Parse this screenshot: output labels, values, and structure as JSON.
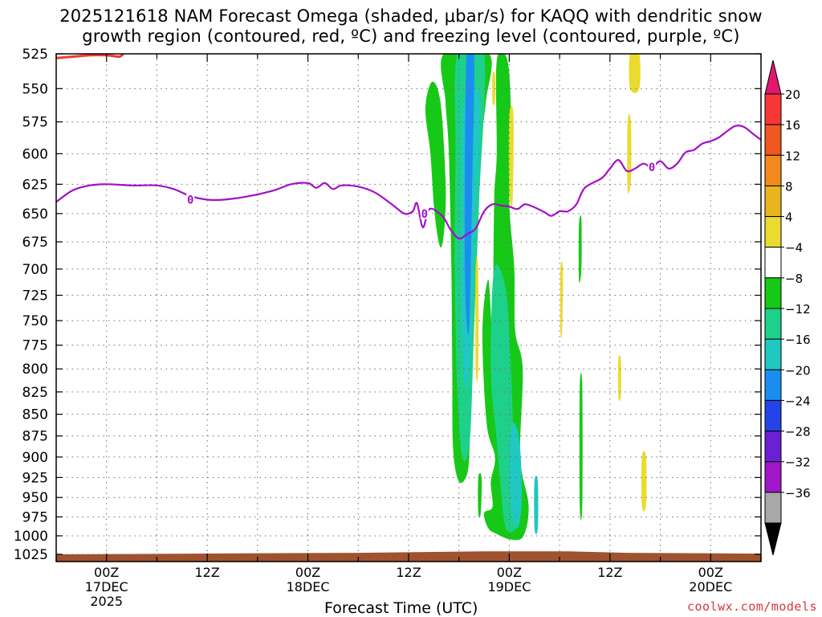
{
  "title": {
    "line1": "2025121618 NAM Forecast Omega (shaded, μbar/s) for KAQQ with dendritic snow",
    "line2": "growth region (contoured, red, ºC) and freezing level (contoured, purple, ºC)"
  },
  "watermark": "coolwx.com/models",
  "chart_data": {
    "type": "heatmap",
    "title": "2025121618 NAM Forecast Omega (shaded, μbar/s) for KAQQ with dendritic snow growth region (contoured, red, ºC) and freezing level (contoured, purple, ºC)",
    "xlabel": "Forecast Time (UTC)",
    "ylabel": "",
    "x_ticks": [
      {
        "hour": 0,
        "lines": [
          "00Z",
          "17DEC",
          "2025"
        ]
      },
      {
        "hour": 12,
        "lines": [
          "12Z"
        ]
      },
      {
        "hour": 24,
        "lines": [
          "00Z",
          "18DEC"
        ]
      },
      {
        "hour": 36,
        "lines": [
          "12Z"
        ]
      },
      {
        "hour": 48,
        "lines": [
          "00Z",
          "19DEC"
        ]
      },
      {
        "hour": 60,
        "lines": [
          "12Z"
        ]
      },
      {
        "hour": 72,
        "lines": [
          "00Z",
          "20DEC"
        ]
      }
    ],
    "xlim_hours": [
      -6,
      78
    ],
    "y_ticks": [
      525,
      550,
      575,
      600,
      625,
      650,
      675,
      700,
      725,
      750,
      775,
      800,
      825,
      850,
      875,
      900,
      925,
      950,
      975,
      1000,
      1025
    ],
    "ylim": [
      525,
      1035
    ],
    "y_scale": "log-pressure",
    "grid": true,
    "colorbar": {
      "labels": [
        "20",
        "16",
        "12",
        "8",
        "4",
        "−4",
        "−8",
        "−12",
        "−16",
        "−20",
        "−24",
        "−28",
        "−32",
        "−36"
      ],
      "colors": [
        "#f73737",
        "#f0561f",
        "#f28a1b",
        "#e9b51f",
        "#ebdb2e",
        "#ffffff",
        "#16c916",
        "#1ed18a",
        "#1fc8c1",
        "#1a8ef0",
        "#2244e8",
        "#6b1fd6",
        "#a016c8",
        "#a8a8a8"
      ],
      "top_arrow_color": "#e0186e",
      "bottom_arrow_color": "#000000"
    },
    "freezing_level": {
      "label": "0",
      "color": "#a310c8",
      "points": [
        [
          -6,
          640
        ],
        [
          -4,
          630
        ],
        [
          -2,
          626
        ],
        [
          0,
          625
        ],
        [
          3,
          626
        ],
        [
          6,
          626
        ],
        [
          8,
          629
        ],
        [
          10,
          635
        ],
        [
          12,
          638
        ],
        [
          14,
          638
        ],
        [
          17,
          635
        ],
        [
          20,
          630
        ],
        [
          22,
          625
        ],
        [
          24,
          624
        ],
        [
          25,
          628
        ],
        [
          26,
          624
        ],
        [
          27,
          629
        ],
        [
          28,
          626
        ],
        [
          30,
          627
        ],
        [
          32,
          632
        ],
        [
          34,
          642
        ],
        [
          35.5,
          650
        ],
        [
          36.5,
          648
        ],
        [
          37,
          641
        ],
        [
          37.7,
          662
        ],
        [
          38.5,
          646
        ],
        [
          40,
          652
        ],
        [
          41,
          664
        ],
        [
          42,
          672
        ],
        [
          43,
          668
        ],
        [
          44,
          663
        ],
        [
          45,
          648
        ],
        [
          46,
          642
        ],
        [
          47,
          643
        ],
        [
          48,
          644
        ],
        [
          49,
          646
        ],
        [
          50,
          642
        ],
        [
          52,
          648
        ],
        [
          53,
          652
        ],
        [
          54,
          648
        ],
        [
          55,
          648
        ],
        [
          56,
          642
        ],
        [
          57,
          628
        ],
        [
          59,
          620
        ],
        [
          60,
          612
        ],
        [
          61,
          605
        ],
        [
          62,
          614
        ],
        [
          63,
          612
        ],
        [
          64,
          608
        ],
        [
          65,
          611
        ],
        [
          66,
          606
        ],
        [
          67,
          612
        ],
        [
          68,
          608
        ],
        [
          69,
          599
        ],
        [
          70,
          597
        ],
        [
          71,
          592
        ],
        [
          72,
          590
        ],
        [
          73,
          587
        ],
        [
          74,
          582
        ],
        [
          75,
          578
        ],
        [
          76,
          579
        ],
        [
          77,
          584
        ],
        [
          78,
          589
        ]
      ],
      "contour_labels": [
        [
          10,
          638
        ],
        [
          37.9,
          650
        ],
        [
          65,
          611
        ]
      ]
    },
    "dendritic_contour": {
      "color": "#ef3b2f",
      "points": [
        [
          -6,
          528
        ],
        [
          -4,
          527
        ],
        [
          -2,
          526
        ],
        [
          0,
          526
        ],
        [
          1.5,
          527
        ],
        [
          2,
          525
        ]
      ]
    },
    "terrain": {
      "color": "#a0522d",
      "top_pressure": [
        [
          -6,
          1025
        ],
        [
          10,
          1024
        ],
        [
          30,
          1023
        ],
        [
          45,
          1021
        ],
        [
          55,
          1021
        ],
        [
          62,
          1023
        ],
        [
          78,
          1024
        ]
      ]
    },
    "omega_areas": [
      {
        "color": "#16c916",
        "points": [
          [
            38,
            565
          ],
          [
            38.8,
            545
          ],
          [
            39.8,
            560
          ],
          [
            40.4,
            620
          ],
          [
            40.3,
            660
          ],
          [
            39.8,
            680
          ],
          [
            39.1,
            650
          ],
          [
            38.6,
            600
          ]
        ]
      },
      {
        "color": "#16c916",
        "points": [
          [
            40.2,
            525
          ],
          [
            45.6,
            525
          ],
          [
            45.2,
            560
          ],
          [
            44.5,
            600
          ],
          [
            44.0,
            660
          ],
          [
            43.8,
            720
          ],
          [
            43.5,
            800
          ],
          [
            43.3,
            880
          ],
          [
            43.0,
            920
          ],
          [
            42.0,
            930
          ],
          [
            41.3,
            890
          ],
          [
            41.2,
            800
          ],
          [
            41.1,
            700
          ],
          [
            40.8,
            600
          ],
          [
            40.4,
            560
          ]
        ]
      },
      {
        "color": "#1ed18a",
        "points": [
          [
            41.8,
            525
          ],
          [
            45.0,
            525
          ],
          [
            44.4,
            640
          ],
          [
            43.8,
            760
          ],
          [
            43.3,
            880
          ],
          [
            42.4,
            900
          ],
          [
            41.8,
            820
          ],
          [
            41.5,
            700
          ],
          [
            41.6,
            600
          ]
        ]
      },
      {
        "color": "#1fc8c1",
        "points": [
          [
            42.6,
            560
          ],
          [
            44.5,
            560
          ],
          [
            43.8,
            700
          ],
          [
            43.4,
            790
          ],
          [
            42.8,
            820
          ],
          [
            42.3,
            750
          ],
          [
            42.3,
            640
          ]
        ]
      },
      {
        "color": "#1a8ef0",
        "points": [
          [
            42.9,
            525
          ],
          [
            43.8,
            525
          ],
          [
            43.6,
            620
          ],
          [
            43.2,
            760
          ],
          [
            42.7,
            700
          ]
        ]
      },
      {
        "color": "#16c916",
        "points": [
          [
            46.5,
            530
          ],
          [
            47.8,
            530
          ],
          [
            48.2,
            575
          ],
          [
            48.0,
            640
          ],
          [
            48.6,
            700
          ],
          [
            48.7,
            760
          ],
          [
            49.6,
            800
          ],
          [
            49.3,
            900
          ],
          [
            50.3,
            960
          ],
          [
            49.7,
            1000
          ],
          [
            48.2,
            1005
          ],
          [
            46.6,
            998
          ],
          [
            45.5,
            990
          ],
          [
            45.0,
            970
          ],
          [
            46.0,
            962
          ],
          [
            45.8,
            930
          ],
          [
            46.3,
            900
          ],
          [
            45.3,
            860
          ],
          [
            44.8,
            760
          ],
          [
            45.5,
            710
          ],
          [
            46.0,
            760
          ],
          [
            46.2,
            640
          ],
          [
            46.5,
            600
          ]
        ]
      },
      {
        "color": "#1ed18a",
        "points": [
          [
            46.2,
            700
          ],
          [
            47.6,
            720
          ],
          [
            48.2,
            800
          ],
          [
            48.6,
            900
          ],
          [
            49.2,
            960
          ],
          [
            48.8,
            990
          ],
          [
            47.6,
            990
          ],
          [
            47.0,
            940
          ],
          [
            46.5,
            880
          ],
          [
            45.8,
            800
          ]
        ]
      },
      {
        "color": "#1fc8c1",
        "points": [
          [
            48.4,
            860
          ],
          [
            49.2,
            880
          ],
          [
            49.5,
            950
          ],
          [
            49.0,
            990
          ],
          [
            48.2,
            960
          ],
          [
            48.0,
            900
          ]
        ]
      },
      {
        "color": "#16c916",
        "points": [
          [
            44.3,
            925
          ],
          [
            44.7,
            925
          ],
          [
            44.6,
            970
          ],
          [
            44.3,
            970
          ]
        ]
      },
      {
        "color": "#16c916",
        "points": [
          [
            56.3,
            660
          ],
          [
            56.6,
            655
          ],
          [
            56.6,
            700
          ],
          [
            56.3,
            710
          ]
        ]
      },
      {
        "color": "#16c916",
        "points": [
          [
            56.4,
            820
          ],
          [
            56.7,
            820
          ],
          [
            56.7,
            960
          ],
          [
            56.4,
            960
          ]
        ]
      },
      {
        "color": "#1fc8c1",
        "points": [
          [
            51.0,
            930
          ],
          [
            51.4,
            930
          ],
          [
            51.4,
            990
          ],
          [
            51.0,
            990
          ]
        ]
      },
      {
        "color": "#ebdb2e",
        "points": [
          [
            48.0,
            570
          ],
          [
            48.5,
            570
          ],
          [
            48.4,
            640
          ],
          [
            48.0,
            630
          ]
        ]
      },
      {
        "color": "#ebdb2e",
        "points": [
          [
            46.0,
            540
          ],
          [
            46.3,
            540
          ],
          [
            46.3,
            560
          ],
          [
            46.0,
            560
          ]
        ]
      },
      {
        "color": "#ebdb2e",
        "points": [
          [
            54.1,
            700
          ],
          [
            54.4,
            700
          ],
          [
            54.3,
            760
          ],
          [
            54.1,
            760
          ]
        ]
      },
      {
        "color": "#ebdb2e",
        "points": [
          [
            62.1,
            575
          ],
          [
            62.5,
            575
          ],
          [
            62.5,
            620
          ],
          [
            62.1,
            630
          ]
        ]
      },
      {
        "color": "#ebdb2e",
        "points": [
          [
            62.4,
            525
          ],
          [
            63.5,
            525
          ],
          [
            63.5,
            550
          ],
          [
            62.4,
            550
          ]
        ]
      },
      {
        "color": "#ebdb2e",
        "points": [
          [
            61.0,
            790
          ],
          [
            61.3,
            790
          ],
          [
            61.3,
            830
          ],
          [
            61.0,
            830
          ]
        ]
      },
      {
        "color": "#ebdb2e",
        "points": [
          [
            63.8,
            900
          ],
          [
            64.3,
            900
          ],
          [
            64.3,
            960
          ],
          [
            63.8,
            960
          ]
        ]
      },
      {
        "color": "#ebdb2e",
        "points": [
          [
            44.0,
            700
          ],
          [
            44.3,
            700
          ],
          [
            44.3,
            800
          ],
          [
            44.0,
            800
          ]
        ]
      }
    ]
  }
}
